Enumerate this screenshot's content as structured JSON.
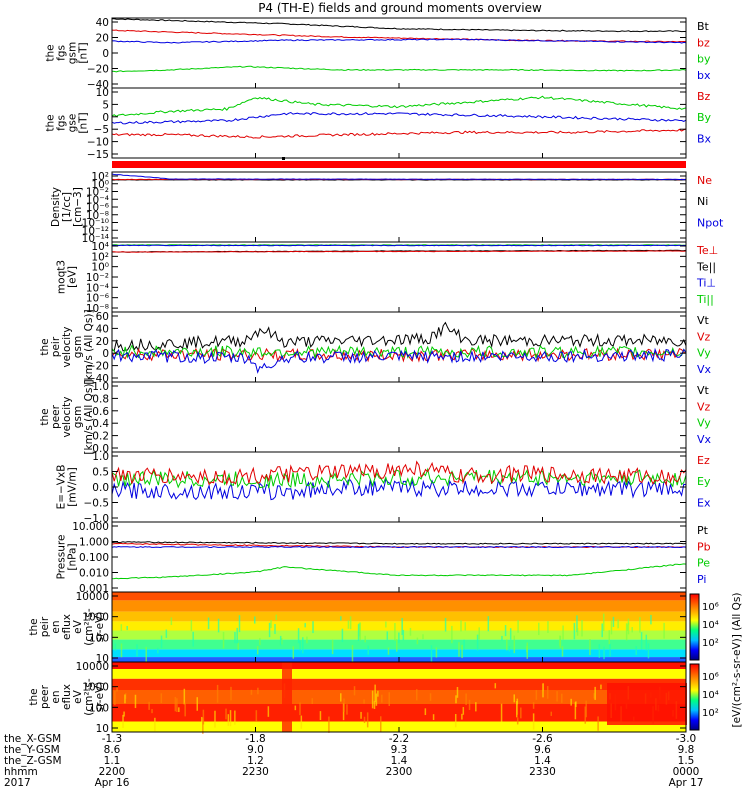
{
  "title": "P4 (TH-E) fields and ground moments overview",
  "colors": {
    "black": "#000000",
    "red": "#e00000",
    "green": "#00cc00",
    "blue": "#0000e0"
  },
  "chart_data": [
    {
      "type": "line",
      "id": "fgs_gsm",
      "ylabel": [
        "the",
        "fgs",
        "gsm",
        "[nT]"
      ],
      "yticks": [
        "40",
        "20",
        "0",
        "−20",
        "−40"
      ],
      "ylim": [
        -40,
        45
      ],
      "legend": [
        {
          "name": "Bt",
          "color": "black"
        },
        {
          "name": "bz",
          "color": "red"
        },
        {
          "name": "by",
          "color": "green"
        },
        {
          "name": "bx",
          "color": "blue"
        }
      ],
      "series": [
        {
          "name": "Bt",
          "color": "black",
          "x": [
            0,
            0.1,
            0.3,
            0.5,
            0.7,
            0.9,
            1.0
          ],
          "y": [
            44,
            42,
            38,
            32,
            30,
            29,
            29
          ]
        },
        {
          "name": "bz",
          "color": "red",
          "x": [
            0,
            0.15,
            0.4,
            0.7,
            1.0
          ],
          "y": [
            30,
            27,
            22,
            18,
            16
          ]
        },
        {
          "name": "by",
          "color": "green",
          "x": [
            0,
            0.1,
            0.23,
            0.4,
            0.7,
            0.9,
            1.0
          ],
          "y": [
            -20,
            -18,
            -14,
            -18,
            -18,
            -19,
            -18
          ]
        },
        {
          "name": "bx",
          "color": "blue",
          "x": [
            0,
            0.1,
            0.3,
            0.6,
            0.8,
            1.0
          ],
          "y": [
            17,
            15,
            18,
            19,
            17,
            15
          ]
        }
      ]
    },
    {
      "type": "line",
      "id": "fgs_gse",
      "ylabel": [
        "the",
        "fgs",
        "gse",
        "[nT]"
      ],
      "yticks": [
        "10",
        "5",
        "0",
        "−5",
        "−10",
        "−15"
      ],
      "ylim": [
        -18,
        12
      ],
      "legend": [
        {
          "name": "Bz",
          "color": "red"
        },
        {
          "name": "By",
          "color": "green"
        },
        {
          "name": "Bx",
          "color": "blue"
        }
      ],
      "series": [
        {
          "name": "Bz",
          "color": "red",
          "x": [
            0,
            0.1,
            0.25,
            0.4,
            0.6,
            0.8,
            1.0
          ],
          "y": [
            -8,
            -8,
            -9,
            -8,
            -7,
            -7,
            -6
          ]
        },
        {
          "name": "By",
          "color": "green",
          "x": [
            0,
            0.1,
            0.2,
            0.25,
            0.35,
            0.5,
            0.75,
            0.9,
            1.0
          ],
          "y": [
            0,
            2,
            3,
            8,
            5,
            4,
            8,
            5,
            3
          ]
        },
        {
          "name": "Bx",
          "color": "blue",
          "x": [
            0,
            0.2,
            0.3,
            0.5,
            0.7,
            1.0
          ],
          "y": [
            -3,
            -2,
            1,
            1,
            0,
            -2
          ]
        }
      ]
    },
    {
      "type": "line",
      "id": "density",
      "ylabel": [
        "Density",
        "[1/cc]",
        "[cm−3]"
      ],
      "yticks": [
        "10²",
        "10⁰",
        "10⁻²",
        "10⁻⁴",
        "10⁻⁶",
        "10⁻⁸",
        "10⁻¹⁰",
        "10⁻¹²",
        "10⁻¹⁴"
      ],
      "ylim": [
        -14,
        2
      ],
      "scale": "log",
      "legend": [
        {
          "name": "Ne",
          "color": "red"
        },
        {
          "name": "Ni",
          "color": "black"
        },
        {
          "name": "Npot",
          "color": "blue"
        }
      ],
      "series": [
        {
          "name": "Ni",
          "color": "black",
          "x": [
            0,
            1.0
          ],
          "y": [
            0.2,
            0.2
          ]
        },
        {
          "name": "Ne",
          "color": "red",
          "x": [
            0,
            1.0
          ],
          "y": [
            0.3,
            0.3
          ]
        },
        {
          "name": "Npot",
          "color": "blue",
          "x": [
            0,
            0.05,
            0.1,
            1.0
          ],
          "y": [
            1.5,
            1.0,
            0.4,
            0.3
          ]
        }
      ]
    },
    {
      "type": "line",
      "id": "temperature",
      "ylabel": [
        "moqt3",
        "[eV]"
      ],
      "yticks": [
        "10⁴",
        "10²",
        "10⁰",
        "10⁻²",
        "10⁻⁴",
        "10⁻⁶",
        "10⁻⁸"
      ],
      "ylim": [
        -9,
        5
      ],
      "scale": "log",
      "legend": [
        {
          "name": "Te⊥",
          "color": "red"
        },
        {
          "name": "Te||",
          "color": "black"
        },
        {
          "name": "Ti⊥",
          "color": "blue"
        },
        {
          "name": "Ti||",
          "color": "green"
        }
      ],
      "series": [
        {
          "name": "Ti||",
          "color": "green",
          "x": [
            0,
            1.0
          ],
          "y": [
            4.4,
            4.4
          ]
        },
        {
          "name": "Ti⊥",
          "color": "blue",
          "x": [
            0,
            1.0
          ],
          "y": [
            4.3,
            4.3
          ]
        },
        {
          "name": "Te||",
          "color": "black",
          "x": [
            0,
            0.5,
            1.0
          ],
          "y": [
            3.0,
            3.2,
            3.3
          ]
        },
        {
          "name": "Te⊥",
          "color": "red",
          "x": [
            0,
            0.5,
            1.0
          ],
          "y": [
            3.0,
            3.1,
            3.2
          ]
        }
      ]
    },
    {
      "type": "line",
      "id": "peir_velocity",
      "ylabel": [
        "the",
        "peir",
        "velocity",
        "gsm",
        "[km/s (All Qs)]"
      ],
      "yticks": [
        "60",
        "40",
        "20",
        "0",
        "−20",
        "−40"
      ],
      "ylim": [
        -40,
        65
      ],
      "legend": [
        {
          "name": "Vt",
          "color": "black"
        },
        {
          "name": "Vz",
          "color": "red"
        },
        {
          "name": "Vy",
          "color": "green"
        },
        {
          "name": "Vx",
          "color": "blue"
        }
      ],
      "series": [
        {
          "name": "Vt",
          "color": "black",
          "x": [
            0,
            0.23,
            0.26,
            0.3,
            0.55,
            0.58,
            0.62,
            1.0
          ],
          "y": [
            15,
            22,
            40,
            20,
            25,
            42,
            22,
            22
          ]
        },
        {
          "name": "Vz",
          "color": "red",
          "x": [
            0,
            0.4,
            1.0
          ],
          "y": [
            2,
            0,
            2
          ]
        },
        {
          "name": "Vy",
          "color": "green",
          "x": [
            0,
            0.5,
            1.0
          ],
          "y": [
            6,
            5,
            5
          ]
        },
        {
          "name": "Vx",
          "color": "blue",
          "x": [
            0,
            0.24,
            0.26,
            0.3,
            1.0
          ],
          "y": [
            0,
            -5,
            -22,
            -3,
            0
          ]
        }
      ]
    },
    {
      "type": "line",
      "id": "peer_velocity",
      "ylabel": [
        "the",
        "peer",
        "velocity",
        "gsm",
        "[km/s (All Qs)]"
      ],
      "yticks": [
        "1.0",
        "0.8",
        "0.6",
        "0.4",
        "0.2",
        "0.0"
      ],
      "ylim": [
        0,
        1
      ],
      "legend": [
        {
          "name": "Vt",
          "color": "black"
        },
        {
          "name": "Vz",
          "color": "red"
        },
        {
          "name": "Vy",
          "color": "green"
        },
        {
          "name": "Vx",
          "color": "blue"
        }
      ],
      "series": []
    },
    {
      "type": "line",
      "id": "efield",
      "ylabel": [
        "E=−VxB",
        "[mV/m]"
      ],
      "yticks": [
        "1.0",
        "0.5",
        "0.0",
        "−0.5",
        "−1.0"
      ],
      "ylim": [
        -1,
        1.1
      ],
      "legend": [
        {
          "name": "Ez",
          "color": "red"
        },
        {
          "name": "Ey",
          "color": "green"
        },
        {
          "name": "Ex",
          "color": "blue"
        }
      ],
      "series": [
        {
          "name": "Ex",
          "color": "blue",
          "x": [
            0,
            0.3,
            0.4,
            0.6,
            1.0
          ],
          "y": [
            -0.05,
            -0.1,
            0.05,
            0,
            0
          ]
        },
        {
          "name": "Ey",
          "color": "green",
          "x": [
            0,
            0.3,
            0.6,
            1.0
          ],
          "y": [
            0.3,
            0.25,
            0.35,
            0.3
          ]
        },
        {
          "name": "Ez",
          "color": "red",
          "x": [
            0,
            0.2,
            0.55,
            0.6,
            0.7,
            1.0
          ],
          "y": [
            0.4,
            0.35,
            0.6,
            0.35,
            0.45,
            0.35
          ]
        }
      ]
    },
    {
      "type": "line",
      "id": "pressure",
      "ylabel": [
        "Pressure",
        "[nPa]"
      ],
      "yticks": [
        "10.000",
        "1.000",
        "0.100",
        "0.010",
        "0.001"
      ],
      "ylim": [
        -3,
        1.2
      ],
      "scale": "log",
      "legend": [
        {
          "name": "Pt",
          "color": "black"
        },
        {
          "name": "Pb",
          "color": "red"
        },
        {
          "name": "Pe",
          "color": "green"
        },
        {
          "name": "Pi",
          "color": "blue"
        }
      ],
      "series": [
        {
          "name": "Pt",
          "color": "black",
          "x": [
            0,
            0.5,
            1.0
          ],
          "y": [
            0.0,
            -0.1,
            -0.1
          ]
        },
        {
          "name": "Pb",
          "color": "red",
          "x": [
            0,
            0.5,
            1.0
          ],
          "y": [
            -0.1,
            -0.3,
            -0.3
          ]
        },
        {
          "name": "Pi",
          "color": "blue",
          "x": [
            0,
            1.0
          ],
          "y": [
            -0.3,
            -0.3
          ]
        },
        {
          "name": "Pe",
          "color": "green",
          "x": [
            0,
            0.1,
            0.25,
            0.3,
            0.5,
            0.8,
            1.0
          ],
          "y": [
            -2.2,
            -2.1,
            -1.8,
            -1.5,
            -2.0,
            -2.0,
            -1.3
          ]
        }
      ]
    },
    {
      "type": "heatmap",
      "id": "peir_spectrogram",
      "ylabel": [
        "the",
        "peir",
        "en",
        "eflux",
        "eV",
        "(cm²-s-",
        "sr-eV)"
      ],
      "yticks": [
        "10000",
        "1000",
        "100",
        "10"
      ],
      "ylim": [
        0.8,
        4.3
      ],
      "scale": "log"
    },
    {
      "type": "heatmap",
      "id": "peer_spectrogram",
      "ylabel": [
        "the",
        "peer",
        "en",
        "eflux",
        "eV",
        "(cm²-s-",
        "sr-eV)"
      ],
      "yticks": [
        "10000",
        "1000",
        "100",
        "10"
      ],
      "ylim": [
        0.8,
        4.3
      ],
      "scale": "log"
    }
  ],
  "colorbar": {
    "label": "[eV/(cm²-s-sr-eV)] (All Qs)",
    "ticks": [
      "10⁶",
      "10⁴",
      "10²"
    ]
  },
  "xaxis": {
    "row_labels": [
      "the_X-GSM",
      "the_Y-GSM",
      "the_Z-GSM",
      "hhmm",
      "2017"
    ],
    "columns": [
      {
        "values": [
          "-1.3",
          "8.6",
          "1.1",
          "2200",
          "Apr 16"
        ]
      },
      {
        "values": [
          "-1.8",
          "9.0",
          "1.2",
          "2230",
          ""
        ]
      },
      {
        "values": [
          "-2.2",
          "9.3",
          "1.4",
          "2300",
          ""
        ]
      },
      {
        "values": [
          "-2.6",
          "9.6",
          "1.4",
          "2330",
          ""
        ]
      },
      {
        "values": [
          "-3.0",
          "9.8",
          "1.5",
          "0000",
          "Apr 17"
        ]
      }
    ]
  }
}
